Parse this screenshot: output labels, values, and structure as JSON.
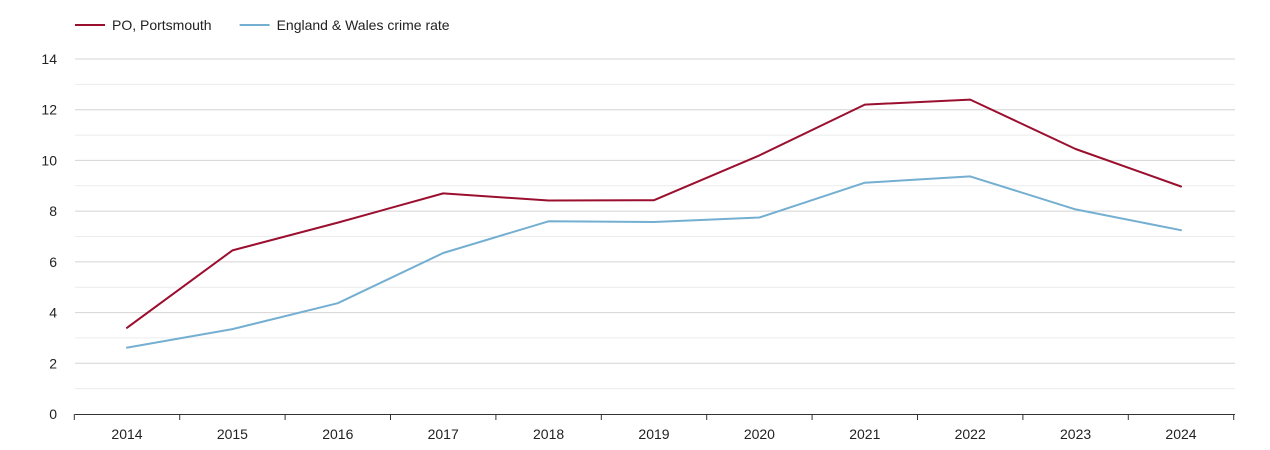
{
  "chart_data": {
    "type": "line",
    "title": "",
    "xlabel": "",
    "ylabel": "",
    "categories": [
      "2014",
      "2015",
      "2016",
      "2017",
      "2018",
      "2019",
      "2020",
      "2021",
      "2022",
      "2023",
      "2024"
    ],
    "ylim": [
      0,
      14
    ],
    "yticks": [
      0,
      2,
      4,
      6,
      8,
      10,
      12,
      14
    ],
    "grid": true,
    "legend_position": "top-left",
    "series": [
      {
        "name": "PO, Portsmouth",
        "color": "#9b0f2e",
        "values": [
          3.4,
          6.45,
          7.55,
          8.7,
          8.42,
          8.43,
          10.2,
          12.2,
          12.4,
          10.45,
          8.97
        ]
      },
      {
        "name": "England & Wales crime rate",
        "color": "#74afd1",
        "values": [
          2.62,
          3.35,
          4.37,
          6.35,
          7.6,
          7.57,
          7.75,
          9.12,
          9.37,
          8.07,
          7.25
        ]
      }
    ]
  }
}
